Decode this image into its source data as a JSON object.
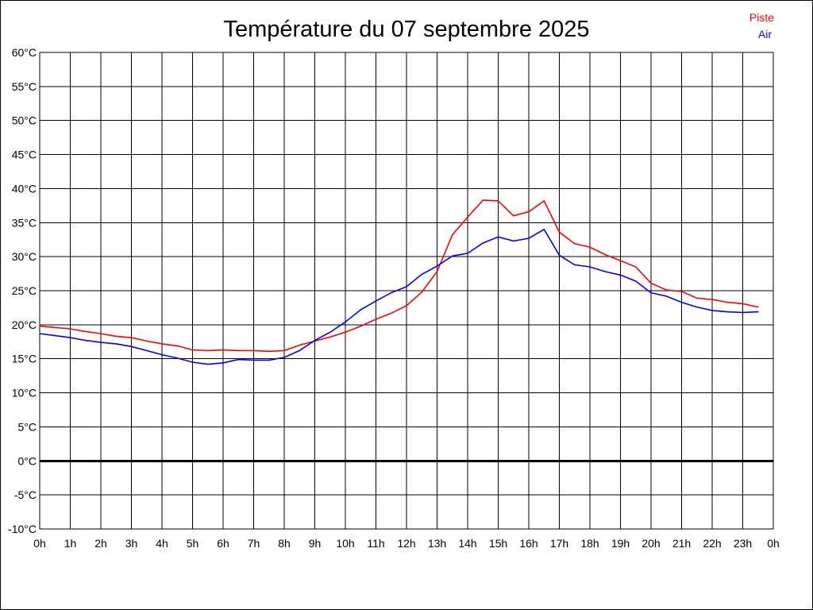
{
  "chart_data": {
    "type": "line",
    "title": "Température du 07 septembre 2025",
    "xlabel": "",
    "ylabel": "",
    "x_ticks": [
      "0h",
      "1h",
      "2h",
      "3h",
      "4h",
      "5h",
      "6h",
      "7h",
      "8h",
      "9h",
      "10h",
      "11h",
      "12h",
      "13h",
      "14h",
      "15h",
      "16h",
      "17h",
      "18h",
      "19h",
      "20h",
      "21h",
      "22h",
      "23h",
      "0h"
    ],
    "y_ticks": [
      "60°C",
      "55°C",
      "50°C",
      "45°C",
      "40°C",
      "35°C",
      "30°C",
      "25°C",
      "20°C",
      "15°C",
      "10°C",
      "5°C",
      "0°C",
      "-5°C",
      "-10°C"
    ],
    "xlim": [
      0,
      24
    ],
    "ylim": [
      -10,
      60
    ],
    "grid": true,
    "legend_position": "top-right",
    "x": [
      0,
      0.5,
      1,
      1.5,
      2,
      2.5,
      3,
      3.5,
      4,
      4.5,
      5,
      5.5,
      6,
      6.5,
      7,
      7.5,
      8,
      8.5,
      9,
      9.5,
      10,
      10.5,
      11,
      11.5,
      12,
      12.5,
      13,
      13.5,
      14,
      14.5,
      15,
      15.5,
      16,
      16.5,
      17,
      17.5,
      18,
      18.5,
      19,
      19.5,
      20,
      20.5,
      21,
      21.5,
      22,
      22.5,
      23,
      23.5
    ],
    "series": [
      {
        "name": "Piste",
        "color": "#ff0000",
        "values": [
          19.8,
          19.6,
          19.4,
          19.0,
          18.7,
          18.3,
          18.1,
          17.6,
          17.2,
          16.9,
          16.3,
          16.2,
          16.3,
          16.2,
          16.2,
          16.1,
          16.2,
          17.0,
          17.6,
          18.2,
          18.9,
          19.8,
          20.8,
          21.7,
          22.8,
          24.8,
          27.8,
          33.2,
          35.8,
          38.3,
          38.2,
          36.0,
          36.6,
          38.2,
          33.6,
          31.9,
          31.4,
          30.3,
          29.4,
          28.5,
          26.1,
          25.1,
          24.9,
          23.9,
          23.7,
          23.3,
          23.1,
          22.6
        ]
      },
      {
        "name": "Air",
        "color": "#0000ff",
        "values": [
          18.7,
          18.4,
          18.1,
          17.7,
          17.4,
          17.2,
          16.8,
          16.2,
          15.6,
          15.1,
          14.5,
          14.2,
          14.4,
          14.9,
          14.8,
          14.8,
          15.2,
          16.2,
          17.7,
          18.9,
          20.4,
          22.2,
          23.5,
          24.7,
          25.6,
          27.4,
          28.6,
          30.1,
          30.5,
          32.0,
          32.9,
          32.3,
          32.7,
          34.0,
          30.2,
          28.8,
          28.5,
          27.8,
          27.3,
          26.4,
          24.7,
          24.2,
          23.3,
          22.6,
          22.1,
          21.9,
          21.8,
          21.9
        ]
      }
    ]
  }
}
